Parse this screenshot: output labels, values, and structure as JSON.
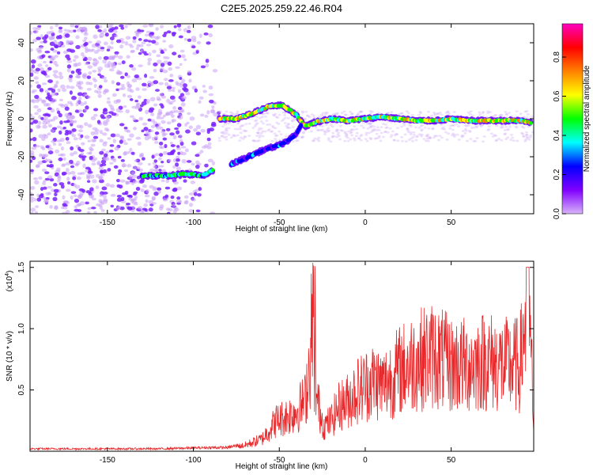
{
  "title": "C2E5.2025.259.22.46.R04",
  "colors": {
    "trace": "#e8282a",
    "axis": "#000000",
    "dots": "#8a3cff",
    "ridge_core": "#ff2020"
  },
  "chart_data": [
    {
      "type": "heatmap",
      "xlabel": "Height of straight line (km)",
      "ylabel": "Frequency (Hz)",
      "xlim": [
        -195,
        98
      ],
      "ylim": [
        -50,
        50
      ],
      "x_ticks": [
        -150,
        -100,
        -50,
        0,
        50
      ],
      "x_tick_labels": [
        "-150",
        "-100",
        "-50",
        "0",
        "50"
      ],
      "y_ticks": [
        -40,
        -20,
        0,
        20,
        40
      ],
      "y_tick_labels": [
        "-40",
        "-20",
        "0",
        "20",
        "40"
      ],
      "colorbar": {
        "label": "Normalized spectral amplitude",
        "range": [
          0,
          0.97
        ],
        "ticks": [
          0.0,
          0.2,
          0.4,
          0.6,
          0.8
        ],
        "tick_labels": [
          "0.0",
          "0.2",
          "0.4",
          "0.6",
          "0.8"
        ],
        "stops": [
          "#d8b4f8",
          "#8000ff",
          "#0000ff",
          "#00ffff",
          "#00ff00",
          "#ffff00",
          "#ff8000",
          "#ff0000",
          "#ff00c0"
        ]
      },
      "ridges": [
        {
          "name": "",
          "amplitude": 0.45,
          "points": [
            [
              -130,
              -30
            ],
            [
              -115,
              -30
            ],
            [
              -105,
              -29
            ],
            [
              -95,
              -30
            ],
            [
              -88,
              -27
            ]
          ]
        },
        {
          "name": "",
          "amplitude": 0.6,
          "points": [
            [
              -85,
              0
            ],
            [
              -75,
              0
            ],
            [
              -65,
              3
            ],
            [
              -55,
              7
            ],
            [
              -48,
              7
            ],
            [
              -40,
              2
            ],
            [
              -35,
              -4
            ],
            [
              -30,
              -2
            ],
            [
              -20,
              0
            ],
            [
              -10,
              -1
            ],
            [
              0,
              0
            ],
            [
              10,
              1
            ],
            [
              20,
              0
            ],
            [
              30,
              -1
            ],
            [
              40,
              -1
            ],
            [
              50,
              0
            ],
            [
              60,
              -1
            ],
            [
              70,
              -1
            ],
            [
              80,
              -1
            ],
            [
              90,
              -1
            ],
            [
              97,
              -2
            ]
          ]
        },
        {
          "name": "",
          "amplitude": 0.25,
          "points": [
            [
              -78,
              -24
            ],
            [
              -68,
              -20
            ],
            [
              -58,
              -16
            ],
            [
              -50,
              -14
            ],
            [
              -44,
              -11
            ],
            [
              -40,
              -8
            ],
            [
              -37,
              -3
            ]
          ]
        }
      ]
    },
    {
      "type": "line",
      "xlabel": "Height of straight line (km)",
      "ylabel": "SNR (10 * v/v)",
      "multiplier": "(x10",
      "multiplier_exp": "4",
      "multiplier_close": ")",
      "xlim": [
        -195,
        98
      ],
      "ylim": [
        0,
        1.55
      ],
      "x_ticks": [
        -150,
        -100,
        -50,
        0,
        50
      ],
      "x_tick_labels": [
        "-150",
        "-100",
        "-50",
        "0",
        "50"
      ],
      "y_ticks": [
        0.5,
        1.0,
        1.5
      ],
      "y_tick_labels": [
        "0.5",
        "1.0",
        "1.5"
      ],
      "envelope": [
        [
          -195,
          0.02
        ],
        [
          -120,
          0.02
        ],
        [
          -90,
          0.03
        ],
        [
          -80,
          0.03
        ],
        [
          -70,
          0.06
        ],
        [
          -60,
          0.12
        ],
        [
          -52,
          0.3
        ],
        [
          -45,
          0.35
        ],
        [
          -40,
          0.4
        ],
        [
          -35,
          0.5
        ],
        [
          -31,
          1.1
        ],
        [
          -28,
          0.5
        ],
        [
          -24,
          0.25
        ],
        [
          -20,
          0.3
        ],
        [
          -15,
          0.45
        ],
        [
          -10,
          0.5
        ],
        [
          -5,
          0.6
        ],
        [
          0,
          0.65
        ],
        [
          5,
          0.7
        ],
        [
          10,
          0.65
        ],
        [
          20,
          0.8
        ],
        [
          30,
          0.9
        ],
        [
          40,
          0.95
        ],
        [
          50,
          0.85
        ],
        [
          60,
          0.85
        ],
        [
          70,
          0.9
        ],
        [
          80,
          0.85
        ],
        [
          90,
          0.85
        ],
        [
          95,
          1.55
        ],
        [
          98,
          0.25
        ]
      ]
    }
  ]
}
